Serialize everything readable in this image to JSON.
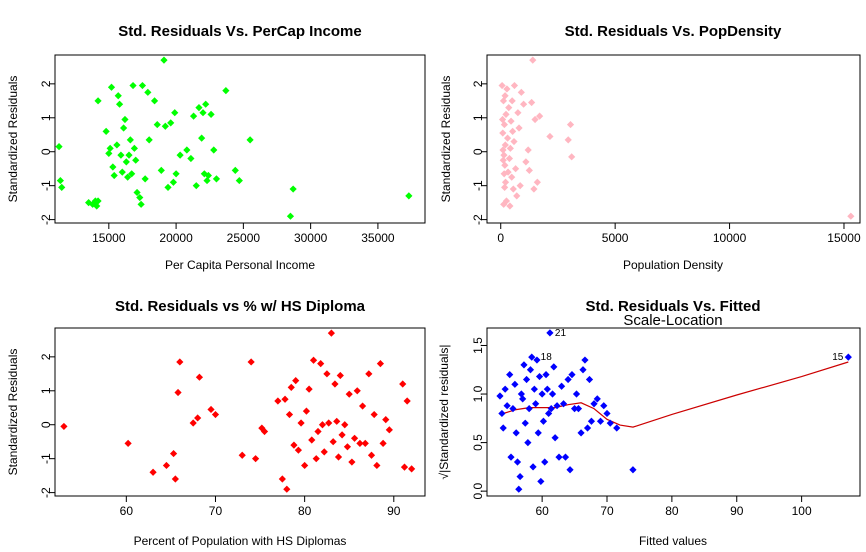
{
  "charts": [
    {
      "id": "percap",
      "title": "Std. Residuals Vs. PerCap Income",
      "xlabel": "Per Capita Personal Income",
      "ylabel": "Standardized Residuals",
      "color": "#00ff00",
      "marker": "diamond"
    },
    {
      "id": "popdens",
      "title": "Std. Residuals Vs. PopDensity",
      "xlabel": "Population Density",
      "ylabel": "Standardized Residuals",
      "color": "#ffb6c1",
      "marker": "diamond"
    },
    {
      "id": "hs",
      "title": "Std. Residuals vs % w/ HS Diploma",
      "xlabel": "Percent of Population with HS Diplomas",
      "ylabel": "Standardized Residuals",
      "color": "#ff0000",
      "marker": "diamond"
    },
    {
      "id": "fitted",
      "title": "Std. Residuals Vs. Fitted",
      "subtitle": "Scale-Location",
      "xlabel": "Fitted values",
      "ylabel": "√|Standardized residuals|",
      "color": "#0000ff",
      "marker": "diamond",
      "smooth_color": "#cc0000"
    }
  ],
  "chart_data": [
    {
      "type": "scatter",
      "title": "Std. Residuals Vs. PerCap Income",
      "xlabel": "Per Capita Personal Income",
      "ylabel": "Standardized Residuals",
      "xlim": [
        11000,
        38500
      ],
      "ylim": [
        -2.1,
        2.85
      ],
      "xticks": [
        15000,
        20000,
        25000,
        30000,
        35000
      ],
      "yticks": [
        -2,
        -1,
        0,
        1,
        2
      ],
      "grid": false,
      "points": [
        [
          11300,
          0.15
        ],
        [
          11400,
          -0.85
        ],
        [
          11500,
          -1.05
        ],
        [
          13500,
          -1.5
        ],
        [
          13800,
          -1.55
        ],
        [
          14000,
          -1.45
        ],
        [
          14100,
          -1.6
        ],
        [
          14200,
          -1.45
        ],
        [
          14800,
          0.6
        ],
        [
          14200,
          1.5
        ],
        [
          15000,
          -0.05
        ],
        [
          15100,
          0.1
        ],
        [
          15200,
          1.9
        ],
        [
          15300,
          -0.45
        ],
        [
          15400,
          -0.7
        ],
        [
          15600,
          0.2
        ],
        [
          15700,
          1.65
        ],
        [
          15800,
          1.4
        ],
        [
          15900,
          -0.1
        ],
        [
          16000,
          -0.6
        ],
        [
          16100,
          0.7
        ],
        [
          16200,
          0.95
        ],
        [
          16300,
          -0.3
        ],
        [
          16400,
          -0.75
        ],
        [
          16500,
          -0.1
        ],
        [
          16600,
          0.35
        ],
        [
          16700,
          -0.65
        ],
        [
          16800,
          1.95
        ],
        [
          16900,
          0.1
        ],
        [
          17000,
          -0.25
        ],
        [
          17100,
          -1.2
        ],
        [
          17300,
          -1.35
        ],
        [
          17400,
          -1.55
        ],
        [
          17500,
          1.95
        ],
        [
          17700,
          -0.8
        ],
        [
          17900,
          1.75
        ],
        [
          18000,
          0.35
        ],
        [
          18400,
          1.5
        ],
        [
          18600,
          0.8
        ],
        [
          18900,
          -0.55
        ],
        [
          19100,
          2.7
        ],
        [
          19200,
          0.75
        ],
        [
          19400,
          -1.05
        ],
        [
          19600,
          0.85
        ],
        [
          19800,
          -0.9
        ],
        [
          19900,
          1.15
        ],
        [
          20000,
          -0.65
        ],
        [
          20300,
          -0.1
        ],
        [
          20800,
          0.05
        ],
        [
          21100,
          -0.2
        ],
        [
          21300,
          1.05
        ],
        [
          21500,
          -1.0
        ],
        [
          21700,
          1.3
        ],
        [
          21900,
          0.4
        ],
        [
          22000,
          1.15
        ],
        [
          22100,
          -0.65
        ],
        [
          22200,
          1.4
        ],
        [
          22300,
          -0.85
        ],
        [
          22400,
          -0.7
        ],
        [
          22600,
          1.1
        ],
        [
          22800,
          0.05
        ],
        [
          23000,
          -0.8
        ],
        [
          23700,
          1.8
        ],
        [
          24400,
          -0.55
        ],
        [
          24700,
          -0.85
        ],
        [
          25500,
          0.35
        ],
        [
          28500,
          -1.9
        ],
        [
          28700,
          -1.1
        ],
        [
          37300,
          -1.3
        ]
      ]
    },
    {
      "type": "scatter",
      "title": "Std. Residuals Vs. PopDensity",
      "xlabel": "Population Density",
      "ylabel": "Standardized Residuals",
      "xlim": [
        -600,
        15700
      ],
      "ylim": [
        -2.1,
        2.85
      ],
      "xticks": [
        0,
        5000,
        10000,
        15000
      ],
      "yticks": [
        -2,
        -1,
        0,
        1,
        2
      ],
      "grid": false,
      "points": [
        [
          60,
          1.95
        ],
        [
          80,
          0.95
        ],
        [
          90,
          0.55
        ],
        [
          100,
          0.05
        ],
        [
          110,
          -0.25
        ],
        [
          120,
          1.5
        ],
        [
          130,
          -1.55
        ],
        [
          140,
          -0.1
        ],
        [
          150,
          -0.65
        ],
        [
          160,
          0.8
        ],
        [
          170,
          -1.05
        ],
        [
          180,
          -0.4
        ],
        [
          190,
          1.65
        ],
        [
          200,
          0.2
        ],
        [
          210,
          -0.9
        ],
        [
          230,
          1.1
        ],
        [
          250,
          -1.45
        ],
        [
          270,
          1.85
        ],
        [
          300,
          0.4
        ],
        [
          320,
          -0.6
        ],
        [
          350,
          1.3
        ],
        [
          380,
          -0.2
        ],
        [
          400,
          -1.6
        ],
        [
          420,
          0.1
        ],
        [
          450,
          0.9
        ],
        [
          480,
          -0.75
        ],
        [
          500,
          1.5
        ],
        [
          520,
          0.6
        ],
        [
          550,
          -1.1
        ],
        [
          580,
          0.3
        ],
        [
          600,
          1.95
        ],
        [
          650,
          -0.5
        ],
        [
          700,
          -1.3
        ],
        [
          750,
          1.15
        ],
        [
          800,
          0.7
        ],
        [
          850,
          -1.0
        ],
        [
          900,
          1.75
        ],
        [
          1000,
          1.4
        ],
        [
          1100,
          -0.3
        ],
        [
          1200,
          0.05
        ],
        [
          1250,
          -0.55
        ],
        [
          1350,
          1.45
        ],
        [
          1400,
          2.7
        ],
        [
          1450,
          -1.1
        ],
        [
          1500,
          0.95
        ],
        [
          1600,
          -0.9
        ],
        [
          1700,
          1.05
        ],
        [
          2150,
          0.45
        ],
        [
          2950,
          0.35
        ],
        [
          3050,
          0.8
        ],
        [
          3100,
          -0.15
        ],
        [
          15300,
          -1.9
        ]
      ]
    },
    {
      "type": "scatter",
      "title": "Std. Residuals vs % w/ HS Diploma",
      "xlabel": "Percent of Population with HS Diplomas",
      "ylabel": "Standardized Residuals",
      "xlim": [
        52,
        93.5
      ],
      "ylim": [
        -2.1,
        2.85
      ],
      "xticks": [
        60,
        70,
        80,
        90
      ],
      "yticks": [
        -2,
        -1,
        0,
        1,
        2
      ],
      "grid": false,
      "points": [
        [
          53.0,
          -0.05
        ],
        [
          60.2,
          -0.55
        ],
        [
          63.0,
          -1.4
        ],
        [
          64.5,
          -1.2
        ],
        [
          65.3,
          -0.85
        ],
        [
          65.5,
          -1.6
        ],
        [
          65.8,
          0.95
        ],
        [
          66.0,
          1.85
        ],
        [
          67.5,
          0.05
        ],
        [
          68.0,
          0.2
        ],
        [
          68.2,
          1.4
        ],
        [
          69.5,
          0.45
        ],
        [
          70.0,
          0.3
        ],
        [
          73.0,
          -0.9
        ],
        [
          74.0,
          1.85
        ],
        [
          74.5,
          -1.0
        ],
        [
          75.2,
          -0.1
        ],
        [
          75.5,
          -0.2
        ],
        [
          77.0,
          0.7
        ],
        [
          77.5,
          -1.6
        ],
        [
          77.8,
          0.75
        ],
        [
          78.0,
          -1.9
        ],
        [
          78.3,
          0.3
        ],
        [
          78.5,
          1.1
        ],
        [
          78.8,
          -0.6
        ],
        [
          79.0,
          1.3
        ],
        [
          79.3,
          -0.75
        ],
        [
          79.6,
          0.05
        ],
        [
          80.0,
          -1.2
        ],
        [
          80.2,
          0.4
        ],
        [
          80.5,
          1.05
        ],
        [
          80.8,
          -0.45
        ],
        [
          81.0,
          1.9
        ],
        [
          81.3,
          -1.0
        ],
        [
          81.5,
          -0.2
        ],
        [
          81.8,
          1.8
        ],
        [
          82.0,
          0.0
        ],
        [
          82.2,
          -0.8
        ],
        [
          82.5,
          1.5
        ],
        [
          82.7,
          0.05
        ],
        [
          83.0,
          2.7
        ],
        [
          83.2,
          -0.5
        ],
        [
          83.4,
          1.2
        ],
        [
          83.6,
          0.1
        ],
        [
          83.8,
          -0.95
        ],
        [
          84.0,
          1.45
        ],
        [
          84.2,
          -0.3
        ],
        [
          84.5,
          0.0
        ],
        [
          84.8,
          -0.65
        ],
        [
          85.0,
          0.9
        ],
        [
          85.3,
          -1.1
        ],
        [
          85.6,
          -0.4
        ],
        [
          85.9,
          1.0
        ],
        [
          86.2,
          -0.55
        ],
        [
          86.5,
          0.55
        ],
        [
          86.8,
          -0.55
        ],
        [
          87.2,
          1.5
        ],
        [
          87.5,
          -0.9
        ],
        [
          87.8,
          0.3
        ],
        [
          88.1,
          -1.2
        ],
        [
          88.5,
          1.8
        ],
        [
          88.8,
          -0.55
        ],
        [
          89.1,
          0.15
        ],
        [
          89.5,
          -0.15
        ],
        [
          91.0,
          1.2
        ],
        [
          91.2,
          -1.25
        ],
        [
          91.5,
          0.7
        ],
        [
          92.0,
          -1.3
        ]
      ]
    },
    {
      "type": "scatter",
      "title": "Std. Residuals Vs. Fitted",
      "subtitle": "Scale-Location",
      "xlabel": "Fitted values",
      "ylabel": "√|Standardized residuals|",
      "xlim": [
        51.5,
        109
      ],
      "ylim": [
        -0.05,
        1.68
      ],
      "xticks": [
        60,
        70,
        80,
        90,
        100
      ],
      "yticks": [
        0.0,
        0.5,
        1.0,
        1.5
      ],
      "grid": false,
      "annotations": [
        {
          "label": "21",
          "x": 61.2,
          "y": 1.63
        },
        {
          "label": "18",
          "x": 59.0,
          "y": 1.38
        },
        {
          "label": "15",
          "x": 107.2,
          "y": 1.38
        }
      ],
      "smooth": [
        [
          54,
          0.8
        ],
        [
          56,
          0.84
        ],
        [
          58,
          0.86
        ],
        [
          60,
          0.86
        ],
        [
          62,
          0.86
        ],
        [
          64,
          0.89
        ],
        [
          66,
          0.91
        ],
        [
          68,
          0.85
        ],
        [
          70,
          0.74
        ],
        [
          72,
          0.68
        ],
        [
          74,
          0.66
        ],
        [
          80,
          0.79
        ],
        [
          90,
          0.99
        ],
        [
          100,
          1.18
        ],
        [
          107.2,
          1.33
        ]
      ],
      "points": [
        [
          53.5,
          0.98
        ],
        [
          53.8,
          0.8
        ],
        [
          54.0,
          0.65
        ],
        [
          54.3,
          1.05
        ],
        [
          54.6,
          0.88
        ],
        [
          55.0,
          1.2
        ],
        [
          55.2,
          0.35
        ],
        [
          55.5,
          0.85
        ],
        [
          55.8,
          1.1
        ],
        [
          56.0,
          0.6
        ],
        [
          56.2,
          0.3
        ],
        [
          56.4,
          0.02
        ],
        [
          56.6,
          0.15
        ],
        [
          56.8,
          1.0
        ],
        [
          57.0,
          0.95
        ],
        [
          57.2,
          1.3
        ],
        [
          57.4,
          0.7
        ],
        [
          57.6,
          1.15
        ],
        [
          57.8,
          0.5
        ],
        [
          58.0,
          0.85
        ],
        [
          58.2,
          1.25
        ],
        [
          58.4,
          1.38
        ],
        [
          58.6,
          0.25
        ],
        [
          58.8,
          1.05
        ],
        [
          59.0,
          0.9
        ],
        [
          59.2,
          1.35
        ],
        [
          59.4,
          0.6
        ],
        [
          59.6,
          1.18
        ],
        [
          59.8,
          0.1
        ],
        [
          60.0,
          1.0
        ],
        [
          60.2,
          0.72
        ],
        [
          60.4,
          0.3
        ],
        [
          60.6,
          1.2
        ],
        [
          60.8,
          1.05
        ],
        [
          61.0,
          0.8
        ],
        [
          61.2,
          1.63
        ],
        [
          61.4,
          0.85
        ],
        [
          61.6,
          1.0
        ],
        [
          61.8,
          1.28
        ],
        [
          62.0,
          0.55
        ],
        [
          62.3,
          0.88
        ],
        [
          62.6,
          0.35
        ],
        [
          63.0,
          1.08
        ],
        [
          63.3,
          0.9
        ],
        [
          63.6,
          0.35
        ],
        [
          64.0,
          1.15
        ],
        [
          64.3,
          0.22
        ],
        [
          64.6,
          1.2
        ],
        [
          65.0,
          0.85
        ],
        [
          65.3,
          1.0
        ],
        [
          65.6,
          0.85
        ],
        [
          66.0,
          0.6
        ],
        [
          66.3,
          1.25
        ],
        [
          66.6,
          1.35
        ],
        [
          67.0,
          0.65
        ],
        [
          67.3,
          1.15
        ],
        [
          67.6,
          0.72
        ],
        [
          68.0,
          0.9
        ],
        [
          68.5,
          0.95
        ],
        [
          69.0,
          0.72
        ],
        [
          69.5,
          0.88
        ],
        [
          70.0,
          0.8
        ],
        [
          70.5,
          0.7
        ],
        [
          71.5,
          0.65
        ],
        [
          74.0,
          0.22
        ],
        [
          107.2,
          1.38
        ]
      ]
    }
  ]
}
